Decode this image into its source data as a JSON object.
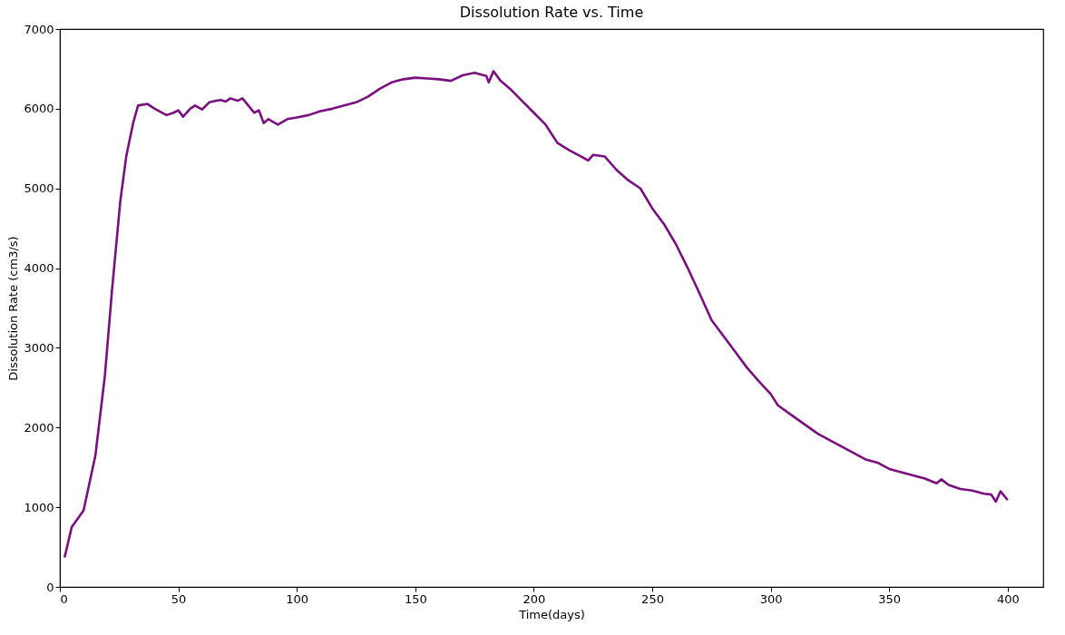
{
  "chart_data": {
    "type": "line",
    "title": "Dissolution Rate  vs. Time",
    "xlabel": "Time(days)",
    "ylabel": "Dissolution Rate (cm3/s)",
    "x": [
      2,
      5,
      10,
      15,
      19,
      22,
      25.5,
      28,
      31,
      33,
      37,
      40,
      45,
      48,
      50,
      52,
      55,
      57,
      60,
      63,
      66,
      68,
      70,
      72,
      75,
      77,
      79,
      82,
      84,
      86,
      88,
      92,
      96,
      100,
      105,
      110,
      115,
      120,
      125,
      130,
      135,
      140,
      145,
      150,
      155,
      160,
      165,
      170,
      175,
      180,
      181,
      183,
      186,
      190,
      195,
      200,
      205,
      210,
      215,
      220,
      223,
      225,
      230,
      235,
      240,
      245,
      250,
      255,
      260,
      265,
      270,
      275,
      280,
      285,
      290,
      295,
      300,
      303,
      310,
      320,
      330,
      340,
      345,
      350,
      355,
      360,
      365,
      370,
      372,
      375,
      380,
      385,
      390,
      393,
      395,
      397,
      400
    ],
    "series": [
      {
        "color": "#7b0f80",
        "values": [
          370,
          750,
          960,
          1650,
          2650,
          3720,
          4840,
          5400,
          5830,
          6040,
          6060,
          6000,
          5920,
          5950,
          5980,
          5900,
          6000,
          6040,
          5990,
          6080,
          6100,
          6110,
          6090,
          6130,
          6100,
          6130,
          6060,
          5950,
          5980,
          5820,
          5870,
          5800,
          5870,
          5890,
          5920,
          5970,
          6000,
          6040,
          6080,
          6150,
          6250,
          6330,
          6370,
          6390,
          6380,
          6370,
          6350,
          6420,
          6450,
          6410,
          6330,
          6470,
          6350,
          6250,
          6100,
          5950,
          5800,
          5570,
          5480,
          5400,
          5350,
          5420,
          5400,
          5230,
          5100,
          5000,
          4750,
          4550,
          4300,
          4000,
          3680,
          3350,
          3150,
          2950,
          2750,
          2580,
          2420,
          2280,
          2130,
          1920,
          1760,
          1600,
          1560,
          1480,
          1440,
          1400,
          1360,
          1300,
          1350,
          1280,
          1230,
          1210,
          1170,
          1160,
          1070,
          1200,
          1090
        ]
      }
    ],
    "xlim": [
      0,
      415
    ],
    "xticks": [
      0,
      50,
      100,
      150,
      200,
      250,
      300,
      350,
      400
    ],
    "ylim": [
      0,
      7000
    ],
    "yticks": [
      0,
      1000,
      2000,
      3000,
      4000,
      5000,
      6000,
      7000
    ],
    "grid": false,
    "marker": "none",
    "line_style": "solid"
  }
}
